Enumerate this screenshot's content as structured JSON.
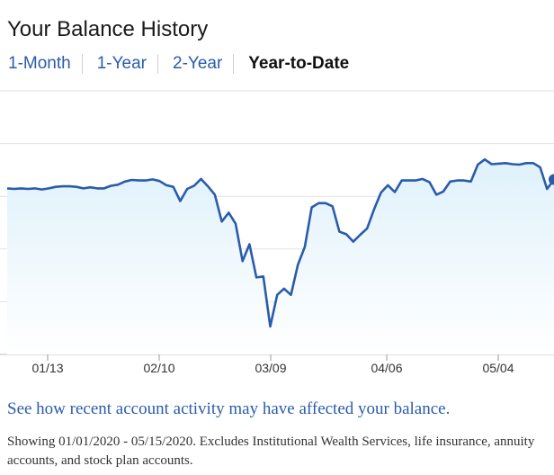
{
  "header": {
    "title": "Your Balance History"
  },
  "tabs": [
    {
      "label": "1-Month",
      "active": false
    },
    {
      "label": "1-Year",
      "active": false
    },
    {
      "label": "2-Year",
      "active": false
    },
    {
      "label": "Year-to-Date",
      "active": true
    }
  ],
  "colors": {
    "line": "#2a5caa",
    "area_top": "#dff1fb",
    "area_bottom": "#ffffff",
    "grid": "#e2e2e2",
    "link": "#2a5caa"
  },
  "chart_data": {
    "type": "area",
    "x_ticks": [
      "01/13",
      "02/10",
      "03/09",
      "04/06",
      "05/04"
    ],
    "grid": true,
    "ylim": [
      0,
      5
    ],
    "values": [
      3.15,
      3.14,
      3.15,
      3.14,
      3.15,
      3.13,
      3.15,
      3.18,
      3.19,
      3.19,
      3.18,
      3.15,
      3.17,
      3.15,
      3.15,
      3.2,
      3.22,
      3.28,
      3.31,
      3.3,
      3.3,
      3.32,
      3.29,
      3.21,
      3.18,
      2.91,
      3.14,
      3.2,
      3.33,
      3.19,
      3.03,
      2.52,
      2.69,
      2.48,
      1.77,
      2.09,
      1.46,
      1.48,
      0.53,
      1.13,
      1.25,
      1.13,
      1.7,
      2.04,
      2.79,
      2.87,
      2.87,
      2.81,
      2.33,
      2.28,
      2.14,
      2.27,
      2.39,
      2.75,
      3.07,
      3.21,
      3.08,
      3.3,
      3.3,
      3.3,
      3.33,
      3.27,
      3.03,
      3.09,
      3.28,
      3.3,
      3.3,
      3.28,
      3.6,
      3.7,
      3.61,
      3.62,
      3.63,
      3.61,
      3.6,
      3.63,
      3.63,
      3.55,
      3.14,
      3.32
    ]
  },
  "activity_link": "See how recent account activity may have affected your balance.",
  "footnote": "Showing 01/01/2020 - 05/15/2020. Excludes Institutional Wealth Services, life insurance, annuity accounts, and stock plan accounts."
}
